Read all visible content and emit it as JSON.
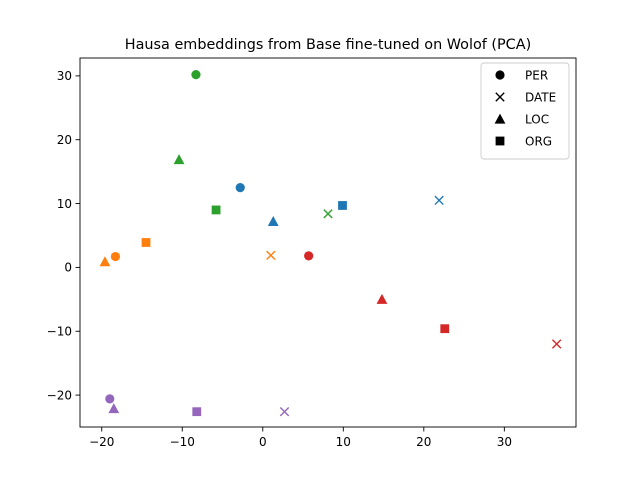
{
  "chart_data": {
    "type": "scatter",
    "title": "Hausa embeddings from Base fine-tuned on Wolof (PCA)",
    "xlabel": "",
    "ylabel": "",
    "xlim": [
      -22.7,
      38.9
    ],
    "ylim": [
      -25.0,
      32.8
    ],
    "xticks": [
      -20,
      -10,
      0,
      10,
      20,
      30
    ],
    "yticks": [
      -20,
      -10,
      0,
      10,
      20,
      30
    ],
    "grid": false,
    "legend_position": "top-right",
    "legend": [
      {
        "label": "PER",
        "marker": "circle"
      },
      {
        "label": "DATE",
        "marker": "x"
      },
      {
        "label": "LOC",
        "marker": "triangle"
      },
      {
        "label": "ORG",
        "marker": "square"
      }
    ],
    "colors": [
      "#1f77b4",
      "#ff7f0e",
      "#2ca02c",
      "#d62728",
      "#9467bd"
    ],
    "series": [
      {
        "color": "#1f77b4",
        "points": [
          {
            "marker": "circle",
            "x": -2.8,
            "y": 12.5
          },
          {
            "marker": "x",
            "x": 21.9,
            "y": 10.5
          },
          {
            "marker": "triangle",
            "x": 1.3,
            "y": 7.2
          },
          {
            "marker": "square",
            "x": 9.9,
            "y": 9.7
          }
        ]
      },
      {
        "color": "#ff7f0e",
        "points": [
          {
            "marker": "circle",
            "x": -18.3,
            "y": 1.7
          },
          {
            "marker": "x",
            "x": 1.0,
            "y": 1.9
          },
          {
            "marker": "triangle",
            "x": -19.6,
            "y": 0.9
          },
          {
            "marker": "square",
            "x": -14.5,
            "y": 3.9
          }
        ]
      },
      {
        "color": "#2ca02c",
        "points": [
          {
            "marker": "circle",
            "x": -8.3,
            "y": 30.2
          },
          {
            "marker": "x",
            "x": 8.1,
            "y": 8.4
          },
          {
            "marker": "triangle",
            "x": -10.4,
            "y": 16.9
          },
          {
            "marker": "square",
            "x": -5.8,
            "y": 9.0
          }
        ]
      },
      {
        "color": "#d62728",
        "points": [
          {
            "marker": "circle",
            "x": 5.7,
            "y": 1.8
          },
          {
            "marker": "x",
            "x": 36.5,
            "y": -12.0
          },
          {
            "marker": "triangle",
            "x": 14.8,
            "y": -5.0
          },
          {
            "marker": "square",
            "x": 22.6,
            "y": -9.6
          }
        ]
      },
      {
        "color": "#9467bd",
        "points": [
          {
            "marker": "circle",
            "x": -19.0,
            "y": -20.6
          },
          {
            "marker": "x",
            "x": 2.7,
            "y": -22.6
          },
          {
            "marker": "triangle",
            "x": -18.5,
            "y": -22.1
          },
          {
            "marker": "square",
            "x": -8.2,
            "y": -22.6
          }
        ]
      }
    ]
  }
}
